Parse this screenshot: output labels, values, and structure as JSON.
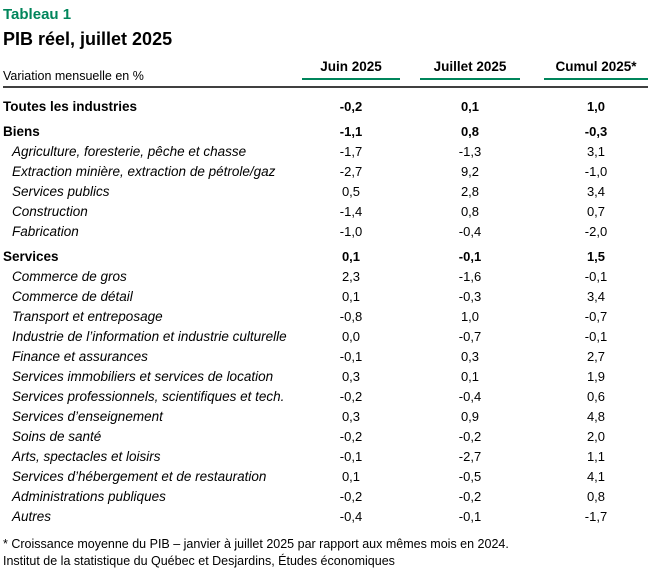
{
  "header": {
    "figure_label": "Tableau 1",
    "title": "PIB réel, juillet 2025"
  },
  "table": {
    "unit_label": "Variation mensuelle en %",
    "columns": [
      "Juin 2025",
      "Juillet 2025",
      "Cumul 2025*"
    ],
    "rows": [
      {
        "label": "Toutes les industries",
        "style": "section",
        "values": [
          "-0,2",
          "0,1",
          "1,0"
        ]
      },
      {
        "label": "Biens",
        "style": "section",
        "values": [
          "-1,1",
          "0,8",
          "-0,3"
        ]
      },
      {
        "label": "Agriculture, foresterie, pêche et chasse",
        "style": "sub",
        "values": [
          "-1,7",
          "-1,3",
          "3,1"
        ]
      },
      {
        "label": "Extraction minière, extraction de pétrole/gaz",
        "style": "sub",
        "values": [
          "-2,7",
          "9,2",
          "-1,0"
        ]
      },
      {
        "label": "Services publics",
        "style": "sub",
        "values": [
          "0,5",
          "2,8",
          "3,4"
        ]
      },
      {
        "label": "Construction",
        "style": "sub",
        "values": [
          "-1,4",
          "0,8",
          "0,7"
        ]
      },
      {
        "label": "Fabrication",
        "style": "sub",
        "values": [
          "-1,0",
          "-0,4",
          "-2,0"
        ]
      },
      {
        "label": "Services",
        "style": "section",
        "values": [
          "0,1",
          "-0,1",
          "1,5"
        ]
      },
      {
        "label": "Commerce de gros",
        "style": "sub",
        "values": [
          "2,3",
          "-1,6",
          "-0,1"
        ]
      },
      {
        "label": "Commerce de détail",
        "style": "sub",
        "values": [
          "0,1",
          "-0,3",
          "3,4"
        ]
      },
      {
        "label": "Transport et entreposage",
        "style": "sub",
        "values": [
          "-0,8",
          "1,0",
          "-0,7"
        ]
      },
      {
        "label": "Industrie de l’information et industrie culturelle",
        "style": "sub",
        "values": [
          "0,0",
          "-0,7",
          "-0,1"
        ]
      },
      {
        "label": "Finance et assurances",
        "style": "sub",
        "values": [
          "-0,1",
          "0,3",
          "2,7"
        ]
      },
      {
        "label": "Services immobiliers et services de location",
        "style": "sub",
        "values": [
          "0,3",
          "0,1",
          "1,9"
        ]
      },
      {
        "label": "Services professionnels, scientifiques et tech.",
        "style": "sub",
        "values": [
          "-0,2",
          "-0,4",
          "0,6"
        ]
      },
      {
        "label": "Services d’enseignement",
        "style": "sub",
        "values": [
          "0,3",
          "0,9",
          "4,8"
        ]
      },
      {
        "label": "Soins de santé",
        "style": "sub",
        "values": [
          "-0,2",
          "-0,2",
          "2,0"
        ]
      },
      {
        "label": "Arts, spectacles et loisirs",
        "style": "sub",
        "values": [
          "-0,1",
          "-2,7",
          "1,1"
        ]
      },
      {
        "label": "Services d’hébergement et de restauration",
        "style": "sub",
        "values": [
          "0,1",
          "-0,5",
          "4,1"
        ]
      },
      {
        "label": "Administrations publiques",
        "style": "sub",
        "values": [
          "-0,2",
          "-0,2",
          "0,8"
        ]
      },
      {
        "label": "Autres",
        "style": "sub",
        "values": [
          "-0,4",
          "-0,1",
          "-1,7"
        ]
      }
    ]
  },
  "footer": {
    "footnote": "* Croissance moyenne du PIB – janvier à juillet 2025 par rapport aux mêmes mois en 2024.",
    "source": "Institut de la statistique du Québec et Desjardins, Études économiques"
  },
  "colors": {
    "accent_green": "#00855B",
    "rule_dark": "#404040"
  },
  "chart_data": {
    "type": "table",
    "title": "PIB réel, juillet 2025",
    "subtitle": "Tableau 1",
    "unit": "Variation mensuelle en %",
    "columns": [
      "Juin 2025",
      "Juillet 2025",
      "Cumul 2025*"
    ],
    "rows": [
      {
        "label": "Toutes les industries",
        "level": "total",
        "values": [
          -0.2,
          0.1,
          1.0
        ]
      },
      {
        "label": "Biens",
        "level": "section",
        "values": [
          -1.1,
          0.8,
          -0.3
        ]
      },
      {
        "label": "Agriculture, foresterie, pêche et chasse",
        "level": "detail",
        "values": [
          -1.7,
          -1.3,
          3.1
        ]
      },
      {
        "label": "Extraction minière, extraction de pétrole/gaz",
        "level": "detail",
        "values": [
          -2.7,
          9.2,
          -1.0
        ]
      },
      {
        "label": "Services publics",
        "level": "detail",
        "values": [
          0.5,
          2.8,
          3.4
        ]
      },
      {
        "label": "Construction",
        "level": "detail",
        "values": [
          -1.4,
          0.8,
          0.7
        ]
      },
      {
        "label": "Fabrication",
        "level": "detail",
        "values": [
          -1.0,
          -0.4,
          -2.0
        ]
      },
      {
        "label": "Services",
        "level": "section",
        "values": [
          0.1,
          -0.1,
          1.5
        ]
      },
      {
        "label": "Commerce de gros",
        "level": "detail",
        "values": [
          2.3,
          -1.6,
          -0.1
        ]
      },
      {
        "label": "Commerce de détail",
        "level": "detail",
        "values": [
          0.1,
          -0.3,
          3.4
        ]
      },
      {
        "label": "Transport et entreposage",
        "level": "detail",
        "values": [
          -0.8,
          1.0,
          -0.7
        ]
      },
      {
        "label": "Industrie de l’information et industrie culturelle",
        "level": "detail",
        "values": [
          0.0,
          -0.7,
          -0.1
        ]
      },
      {
        "label": "Finance et assurances",
        "level": "detail",
        "values": [
          -0.1,
          0.3,
          2.7
        ]
      },
      {
        "label": "Services immobiliers et services de location",
        "level": "detail",
        "values": [
          0.3,
          0.1,
          1.9
        ]
      },
      {
        "label": "Services professionnels, scientifiques et tech.",
        "level": "detail",
        "values": [
          -0.2,
          -0.4,
          0.6
        ]
      },
      {
        "label": "Services d’enseignement",
        "level": "detail",
        "values": [
          0.3,
          0.9,
          4.8
        ]
      },
      {
        "label": "Soins de santé",
        "level": "detail",
        "values": [
          -0.2,
          -0.2,
          2.0
        ]
      },
      {
        "label": "Arts, spectacles et loisirs",
        "level": "detail",
        "values": [
          -0.1,
          -2.7,
          1.1
        ]
      },
      {
        "label": "Services d’hébergement et de restauration",
        "level": "detail",
        "values": [
          0.1,
          -0.5,
          4.1
        ]
      },
      {
        "label": "Administrations publiques",
        "level": "detail",
        "values": [
          -0.2,
          -0.2,
          0.8
        ]
      },
      {
        "label": "Autres",
        "level": "detail",
        "values": [
          -0.4,
          -0.1,
          -1.7
        ]
      }
    ],
    "footnote": "* Croissance moyenne du PIB – janvier à juillet 2025 par rapport aux mêmes mois en 2024.",
    "source": "Institut de la statistique du Québec et Desjardins, Études économiques"
  }
}
